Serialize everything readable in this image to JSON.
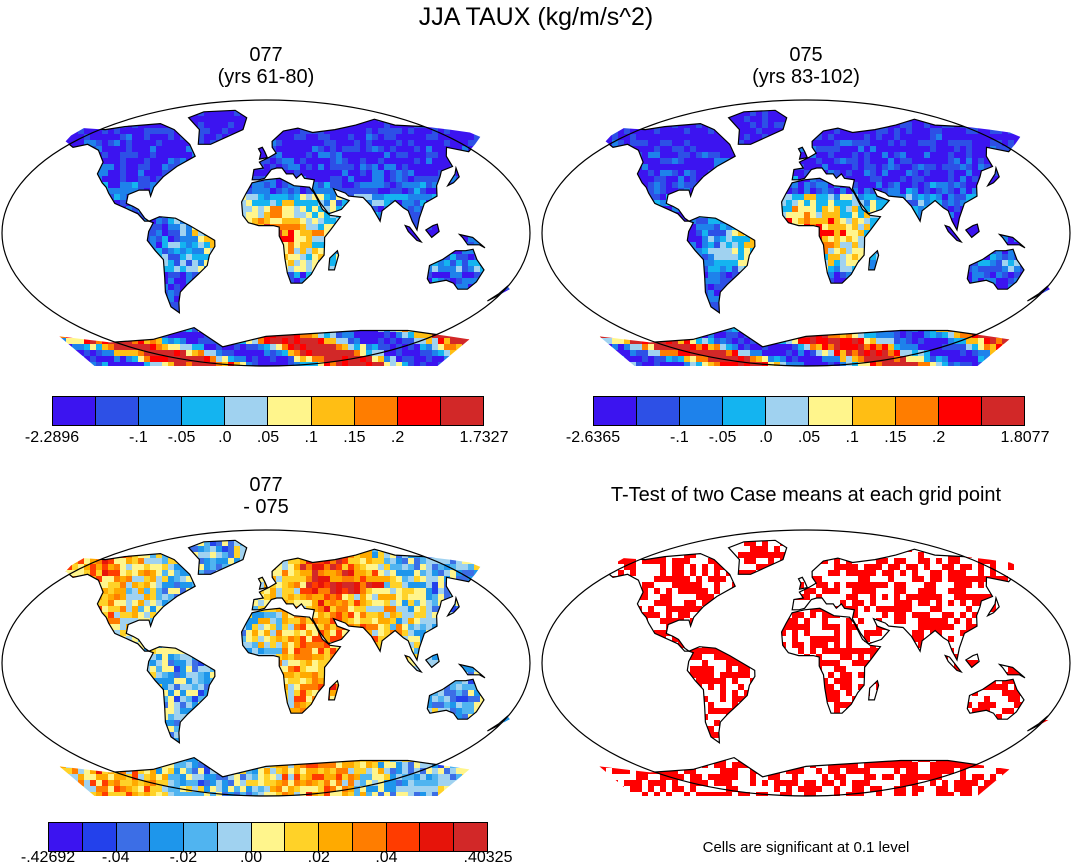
{
  "title": "JJA TAUX (kg/m/s^2)",
  "panels": [
    {
      "title_line1": "077",
      "title_line2": "(yrs 61-80)",
      "colorbar": {
        "colors": [
          "#3c14f0",
          "#2d50e6",
          "#1e82eb",
          "#14b4f0",
          "#a0d2f0",
          "#fff58c",
          "#ffbe14",
          "#ff7d00",
          "#ff0000",
          "#d22828"
        ],
        "labels": [
          "-2.2896",
          "-.1",
          "-.05",
          ".0",
          ".05",
          ".1",
          ".15",
          ".2",
          "1.7327"
        ]
      }
    },
    {
      "title_line1": "075",
      "title_line2": "(yrs 83-102)",
      "colorbar": {
        "colors": [
          "#3c14f0",
          "#2d50e6",
          "#1e82eb",
          "#14b4f0",
          "#a0d2f0",
          "#fff58c",
          "#ffbe14",
          "#ff7d00",
          "#ff0000",
          "#d22828"
        ],
        "labels": [
          "-2.6365",
          "-.1",
          "-.05",
          ".0",
          ".05",
          ".1",
          ".15",
          ".2",
          "1.8077"
        ]
      }
    },
    {
      "title_line1": "077",
      "title_line2": "- 075",
      "colorbar": {
        "colors": [
          "#3c14f0",
          "#2341eb",
          "#3c6ee6",
          "#1e96eb",
          "#50b4f0",
          "#a0d2f0",
          "#fff58c",
          "#ffd228",
          "#ffaa00",
          "#ff7d00",
          "#ff3c00",
          "#e6140a",
          "#d22828"
        ],
        "labels": [
          "-.42692",
          "-.04",
          "-.02",
          ".00",
          ".02",
          ".04",
          ".40325"
        ]
      }
    },
    {
      "title_line1": "T-Test of two Case means at each grid point",
      "title_line2": "",
      "note": "Cells are significant at 0.1 level",
      "significance_color": "#ff0000"
    }
  ]
}
